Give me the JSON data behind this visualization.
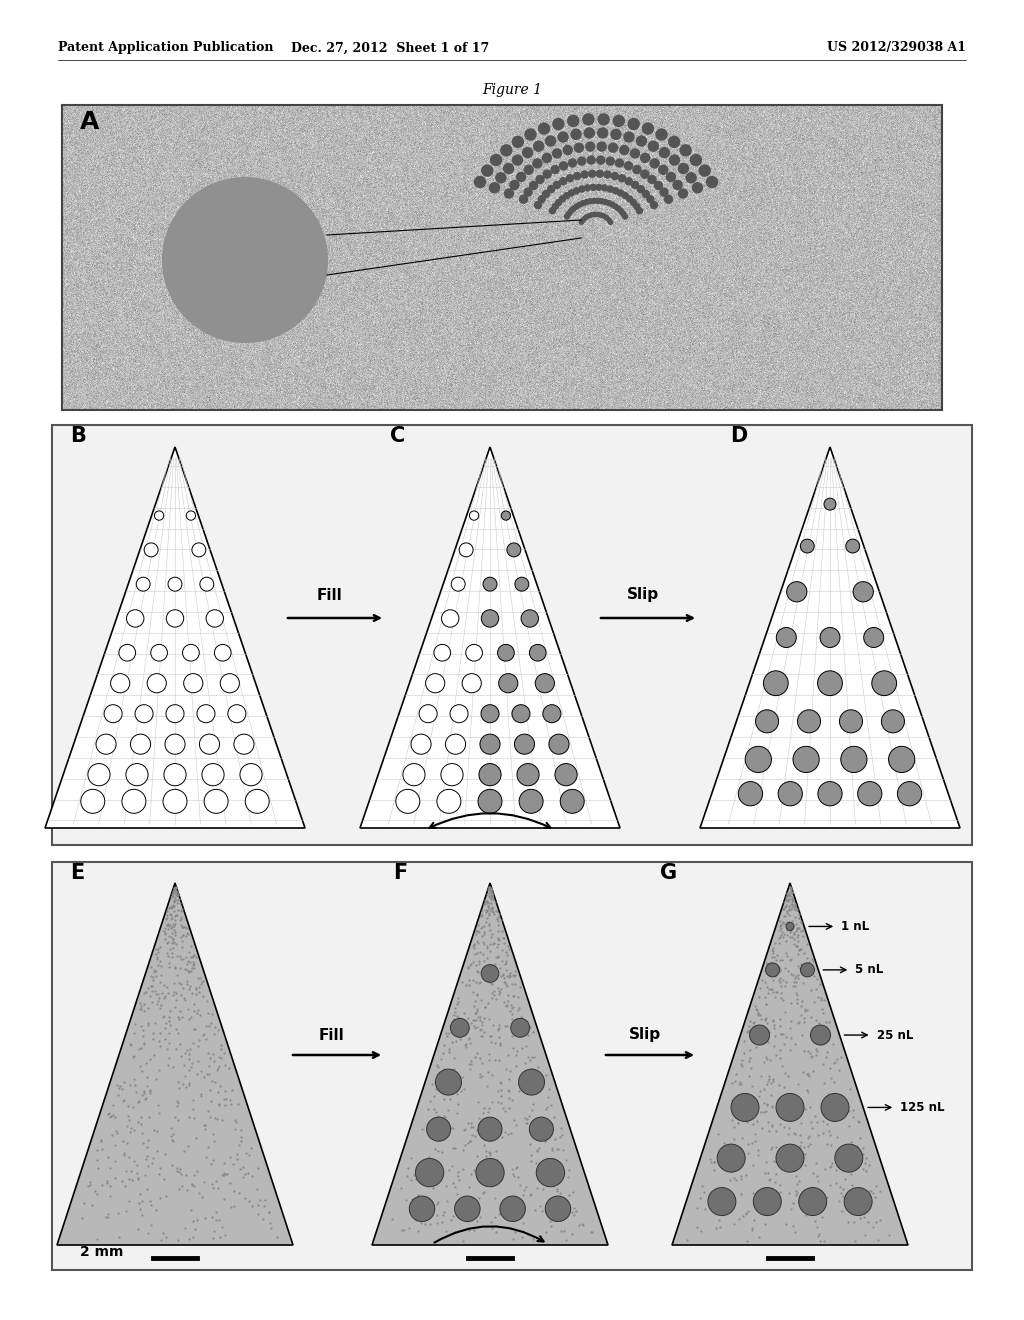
{
  "bg_color": "#ffffff",
  "header_left": "Patent Application Publication",
  "header_center": "Dec. 27, 2012  Sheet 1 of 17",
  "header_right": "US 2012/329038 A1",
  "figure_label": "Figure 1",
  "panel_labels": [
    "A",
    "B",
    "C",
    "D",
    "E",
    "F",
    "G"
  ],
  "fill_label": "Fill",
  "slip_label": "Slip",
  "scale_label": "2 mm",
  "nL_labels": [
    "1 nL",
    "5 nL",
    "25 nL",
    "125 nL"
  ],
  "photo_bg": "#b0b0b0",
  "box_bg": "#e8e8e8",
  "cone_white_fill": "#ffffff",
  "cone_gray_fill": "#b0b0b0",
  "circle_empty": "#ffffff",
  "circle_gray": "#909090",
  "circle_dark": "#707070",
  "header_font": 9,
  "label_font": 15,
  "arrow_font": 11
}
